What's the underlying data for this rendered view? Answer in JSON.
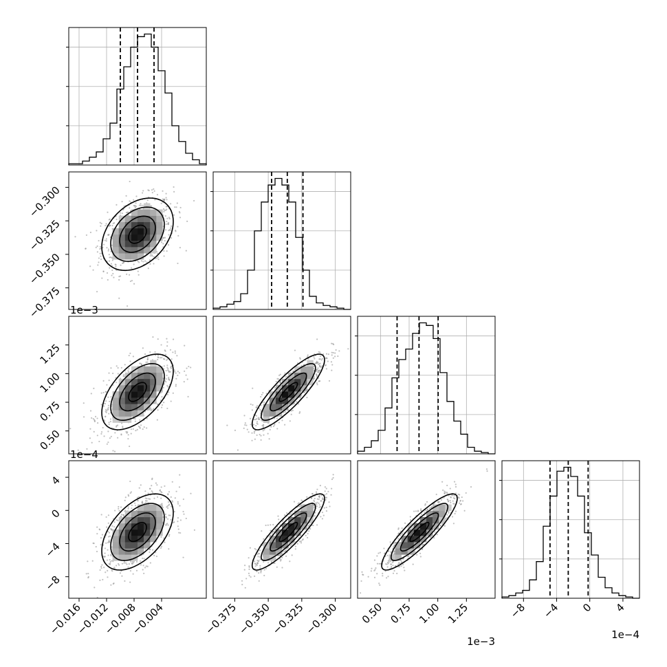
{
  "chart_data": {
    "type": "corner",
    "grid": true,
    "params": [
      {
        "range": [
          -0.0175,
          0.0025
        ],
        "ticks": [
          -0.016,
          -0.012,
          -0.008,
          -0.004
        ],
        "tick_labels": [
          "−0.016",
          "−0.012",
          "−0.008",
          "−0.004"
        ],
        "offset_label": "",
        "quantiles": [
          -0.01,
          -0.0075,
          -0.0051
        ],
        "hist_ticks": 3,
        "hist": [
          0.01,
          0.01,
          0.03,
          0.06,
          0.1,
          0.2,
          0.32,
          0.58,
          0.75,
          0.9,
          0.98,
          1.0,
          0.9,
          0.72,
          0.55,
          0.3,
          0.18,
          0.09,
          0.04,
          0.01
        ]
      },
      {
        "range": [
          -0.3911,
          -0.2885
        ],
        "ticks": [
          -0.375,
          -0.35,
          -0.325,
          -0.3
        ],
        "tick_labels": [
          "−0.375",
          "−0.350",
          "−0.325",
          "−0.300"
        ],
        "offset_label": "",
        "quantiles": [
          -0.3475,
          -0.3358,
          -0.3241
        ],
        "hist_ticks": 3,
        "hist": [
          0.01,
          0.02,
          0.04,
          0.06,
          0.12,
          0.3,
          0.6,
          0.82,
          0.95,
          1.0,
          0.95,
          0.82,
          0.55,
          0.3,
          0.1,
          0.05,
          0.03,
          0.02,
          0.01,
          0.0
        ]
      },
      {
        "range": [
          0.3,
          1.5
        ],
        "ticks": [
          0.5,
          0.75,
          1.0,
          1.25
        ],
        "tick_labels": [
          "0.50",
          "0.75",
          "1.00",
          "1.25"
        ],
        "offset_label": "1e−3",
        "quantiles": [
          0.6448,
          0.8362,
          1.003
        ],
        "hist_ticks": 3,
        "hist": [
          0.02,
          0.05,
          0.1,
          0.18,
          0.35,
          0.58,
          0.72,
          0.8,
          0.92,
          1.0,
          0.98,
          0.88,
          0.62,
          0.4,
          0.25,
          0.15,
          0.05,
          0.02,
          0.01,
          0.0
        ]
      },
      {
        "range": [
          -10.6,
          6.0
        ],
        "ticks": [
          -8,
          -4,
          0,
          4
        ],
        "tick_labels": [
          "−8",
          "−4",
          "0",
          "4"
        ],
        "y_tick_labels": [
          "4",
          "0",
          "−4",
          "−8"
        ],
        "offset_label": "1e−4",
        "quantiles": [
          -4.8,
          -2.6,
          -0.2
        ],
        "hist_ticks": 3,
        "hist": [
          0.01,
          0.02,
          0.04,
          0.06,
          0.14,
          0.28,
          0.55,
          0.78,
          0.97,
          1.0,
          0.93,
          0.78,
          0.5,
          0.33,
          0.16,
          0.08,
          0.04,
          0.02,
          0.01,
          0.0
        ]
      }
    ],
    "pairs": [
      {
        "row": 1,
        "col": 0,
        "mean": [
          -0.0075,
          -0.335
        ],
        "sd": [
          0.0026,
          0.0135
        ],
        "rho": 0.35
      },
      {
        "row": 2,
        "col": 0,
        "mean": [
          -0.0075,
          0.84
        ],
        "sd": [
          0.0026,
          0.165
        ],
        "rho": 0.55
      },
      {
        "row": 2,
        "col": 1,
        "mean": [
          -0.335,
          0.84
        ],
        "sd": [
          0.0135,
          0.165
        ],
        "rho": 0.85
      },
      {
        "row": 3,
        "col": 0,
        "mean": [
          -0.0075,
          -2.6
        ],
        "sd": [
          0.0026,
          2.3
        ],
        "rho": 0.5
      },
      {
        "row": 3,
        "col": 1,
        "mean": [
          -0.335,
          -2.6
        ],
        "sd": [
          0.0135,
          2.3
        ],
        "rho": 0.88
      },
      {
        "row": 3,
        "col": 2,
        "mean": [
          0.84,
          -2.6
        ],
        "sd": [
          0.165,
          2.3
        ],
        "rho": 0.88
      }
    ],
    "contour_levels_sigma": [
      0.5,
      1.0,
      1.5,
      2.0
    ]
  }
}
